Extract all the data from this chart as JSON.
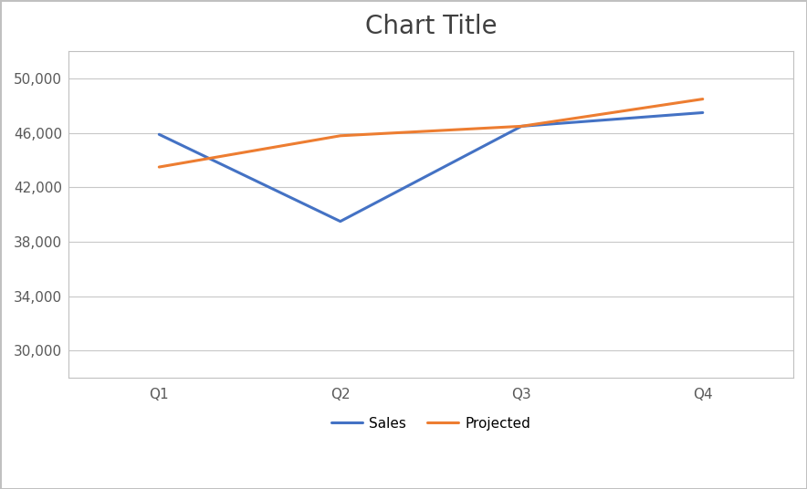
{
  "title": "Chart Title",
  "categories": [
    "Q1",
    "Q2",
    "Q3",
    "Q4"
  ],
  "sales": [
    45900,
    39500,
    46500,
    47500
  ],
  "projected": [
    43500,
    45800,
    46500,
    48500
  ],
  "sales_color": "#4472C4",
  "projected_color": "#ED7D31",
  "legend_labels": [
    "Sales",
    "Projected"
  ],
  "ylim": [
    28000,
    52000
  ],
  "yticks": [
    30000,
    34000,
    38000,
    42000,
    46000,
    50000
  ],
  "background_color": "#ffffff",
  "grid_color": "#C8C8C8",
  "title_fontsize": 20,
  "legend_fontsize": 11,
  "tick_fontsize": 11,
  "line_width": 2.2,
  "border_color": "#C0C0C0"
}
